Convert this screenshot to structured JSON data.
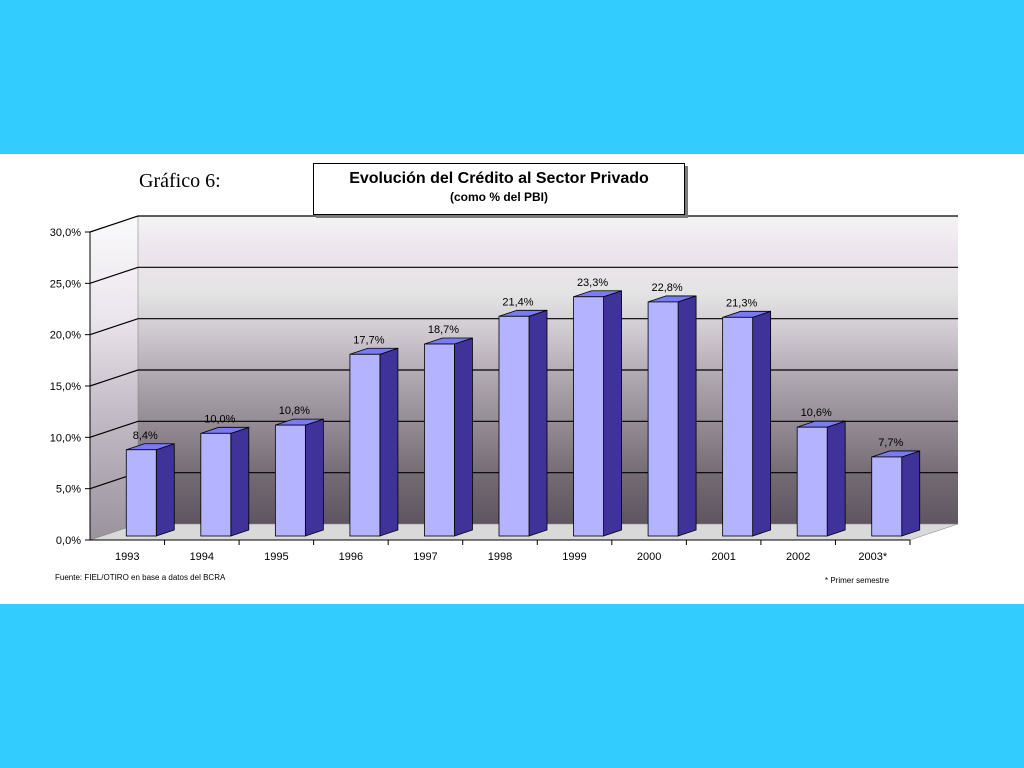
{
  "slide": {
    "heading": "Gráfico 6:",
    "title_line1": "Evolución del Crédito al Sector Privado",
    "title_line2": "(como % del PBI)",
    "source_note": "Fuente: FIEL/OTIRO en base a datos del BCRA",
    "footnote": "* Primer semestre"
  },
  "colors": {
    "background": "#33ccff",
    "bar_front": "#b3b3ff",
    "bar_side": "#3f3399",
    "bar_top": "#7a7af5"
  },
  "chart_data": {
    "type": "bar",
    "title": "Evolución del Crédito al Sector Privado",
    "subtitle": "(como % del PBI)",
    "categories": [
      "1993",
      "1994",
      "1995",
      "1996",
      "1997",
      "1998",
      "1999",
      "2000",
      "2001",
      "2002",
      "2003*"
    ],
    "values": [
      8.4,
      10.0,
      10.8,
      17.7,
      18.7,
      21.4,
      23.3,
      22.8,
      21.3,
      10.6,
      7.7
    ],
    "value_labels": [
      "8,4%",
      "10,0%",
      "10,8%",
      "17,7%",
      "18,7%",
      "21,4%",
      "23,3%",
      "22,8%",
      "21,3%",
      "10,6%",
      "7,7%"
    ],
    "y_ticks": [
      "0,0%",
      "5,0%",
      "10,0%",
      "15,0%",
      "20,0%",
      "25,0%",
      "30,0%"
    ],
    "ylim": [
      0,
      30
    ],
    "xlabel": "",
    "ylabel": "",
    "grid": true,
    "style": "3d-bar"
  }
}
